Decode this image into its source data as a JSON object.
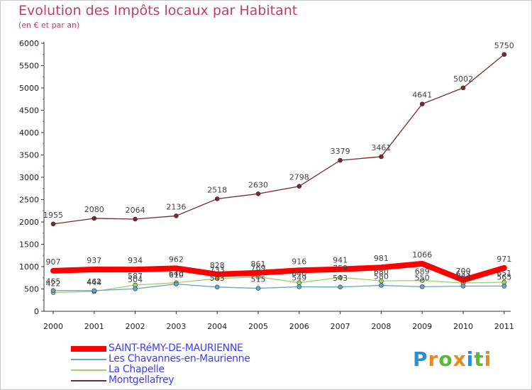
{
  "header": {
    "title": "Evolution des Impôts locaux par Habitant",
    "subtitle": "(en € et par an)"
  },
  "logo": {
    "letters": [
      "P",
      "r",
      "o",
      "x",
      "i",
      "t",
      "i"
    ],
    "colors": [
      "#2c8fd6",
      "#e58a1f",
      "#5bb832",
      "#e58a1f",
      "#2c8fd6",
      "#5bb832",
      "#e58a1f"
    ]
  },
  "chart_data": {
    "type": "line",
    "title": "Evolution des Impôts locaux par Habitant",
    "subtitle": "(en € et par an)",
    "xlabel": "",
    "ylabel": "",
    "ylim": [
      0,
      6000
    ],
    "yticks": [
      0,
      500,
      1000,
      1500,
      2000,
      2500,
      3000,
      3500,
      4000,
      4500,
      5000,
      5500,
      6000
    ],
    "x": [
      "2000",
      "2001",
      "2002",
      "2003",
      "2004",
      "2005",
      "2006",
      "2007",
      "2008",
      "2009",
      "2010",
      "2011"
    ],
    "grid": false,
    "legend_position": "bottom-left",
    "series": [
      {
        "name": "Montgellafrey",
        "color": "#7a2a2a",
        "values": [
          1955,
          2080,
          2064,
          2136,
          2518,
          2630,
          2798,
          3379,
          3461,
          4641,
          5002,
          5750
        ]
      },
      {
        "name": "La Chapelle",
        "color": "#9bd36a",
        "values": [
          422,
          444,
          587,
          640,
          733,
          769,
          640,
          759,
          680,
          689,
          633,
          651
        ]
      },
      {
        "name": "Les Chavannes-en-Maurienne",
        "color": "#6aa2cf",
        "values": [
          465,
          462,
          504,
          610,
          543,
          515,
          549,
          543,
          580,
          550,
          564,
          565
        ]
      },
      {
        "name": "SAINT-RéMY-DE-MAURIENNE",
        "color": "#ff0000",
        "values": [
          907,
          937,
          934,
          962,
          828,
          861,
          916,
          941,
          981,
          1066,
          700,
          971
        ]
      }
    ]
  },
  "legend": {
    "items": [
      {
        "label": "SAINT-RéMY-DE-MAURIENNE",
        "color": "#ff0000",
        "thickness": 8
      },
      {
        "label": "Les Chavannes-en-Maurienne",
        "color": "#6aa2cf",
        "thickness": 2
      },
      {
        "label": "La Chapelle",
        "color": "#9bd36a",
        "thickness": 2
      },
      {
        "label": "Montgellafrey",
        "color": "#7a2a2a",
        "thickness": 2
      }
    ]
  }
}
